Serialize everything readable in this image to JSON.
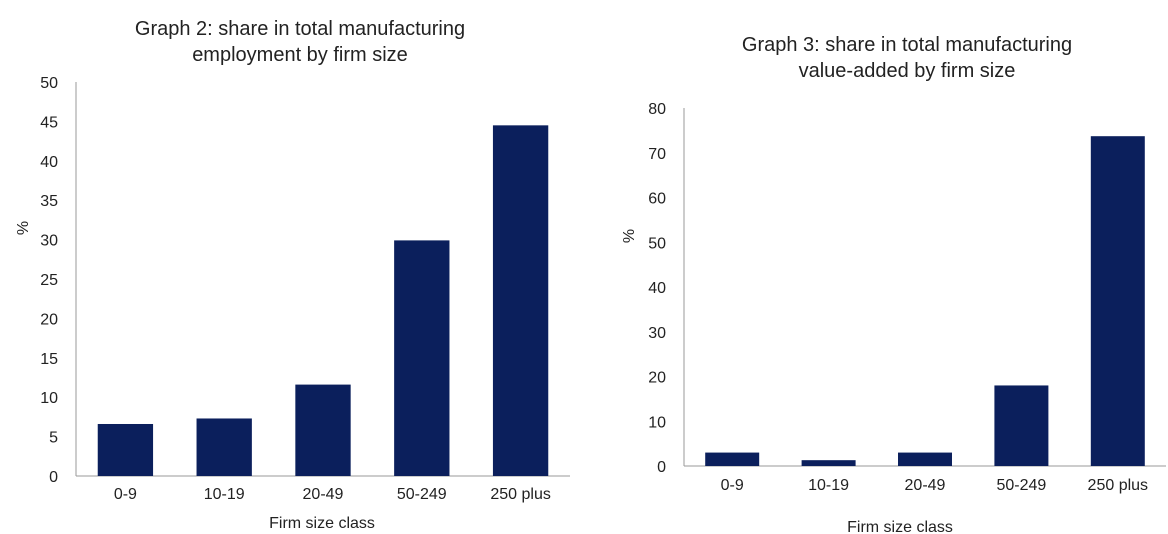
{
  "chart_data": [
    {
      "type": "bar",
      "title_lines": [
        "Graph 2: share in total manufacturing",
        "employment  by firm size"
      ],
      "xlabel": "Firm size class",
      "ylabel": "%",
      "categories": [
        "0-9",
        "10-19",
        "20-49",
        "50-249",
        "250 plus"
      ],
      "values": [
        6.6,
        7.3,
        11.6,
        29.9,
        44.5
      ],
      "ylim": [
        0,
        50
      ],
      "yticks": [
        0,
        5,
        10,
        15,
        20,
        25,
        30,
        35,
        40,
        45,
        50
      ],
      "grid": false,
      "bar_color": "#0b1f5c"
    },
    {
      "type": "bar",
      "title_lines": [
        "Graph 3: share in total manufacturing",
        "value-added by firm size"
      ],
      "xlabel": "Firm size class",
      "ylabel": "%",
      "categories": [
        "0-9",
        "10-19",
        "20-49",
        "50-249",
        "250 plus"
      ],
      "values": [
        3.0,
        1.3,
        3.0,
        18.0,
        73.7
      ],
      "ylim": [
        0,
        80
      ],
      "yticks": [
        0,
        10,
        20,
        30,
        40,
        50,
        60,
        70,
        80
      ],
      "grid": false,
      "bar_color": "#0b1f5c"
    }
  ]
}
